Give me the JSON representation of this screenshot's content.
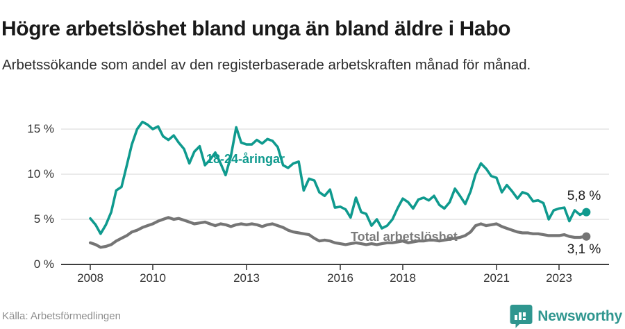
{
  "header": {
    "title": "Högre arbetslöshet bland unga än bland äldre i Habo",
    "subtitle": "Arbetssökande som andel av den registerbaserade arbetskraften månad för månad."
  },
  "footer": {
    "source": "Källa: Arbetsförmedlingen",
    "brand": "Newsworthy",
    "brand_icon": "bar-chart-speech-bubble-icon"
  },
  "colors": {
    "young_line": "#0f9a8e",
    "total_line": "#757575",
    "grid": "#dddddd",
    "axis": "#3d3d3d",
    "brand_teal": "#2f968f"
  },
  "chart_data": {
    "type": "line",
    "title": "Högre arbetslöshet bland unga än bland äldre i Habo",
    "subtitle": "Arbetssökande som andel av den registerbaserade arbetskraften månad för månad.",
    "grid": "horizontal-only",
    "legend_position": "inline-labels",
    "x_axis": {
      "tick_labels": [
        "2008",
        "2010",
        "2013",
        "2016",
        "2018",
        "2021",
        "2023"
      ],
      "tick_years": [
        2008,
        2010,
        2013,
        2016,
        2018,
        2021,
        2023
      ],
      "range": [
        2008.0,
        2023.83
      ]
    },
    "y_axis": {
      "tick_labels": [
        "15 %",
        "10 %",
        "5 %",
        "0 %"
      ],
      "tick_values": [
        15,
        10,
        5,
        0
      ],
      "range": [
        0,
        17
      ]
    },
    "x": [
      2008.0,
      2008.17,
      2008.33,
      2008.5,
      2008.67,
      2008.83,
      2009.0,
      2009.17,
      2009.33,
      2009.5,
      2009.67,
      2009.83,
      2010.0,
      2010.17,
      2010.33,
      2010.5,
      2010.67,
      2010.83,
      2011.0,
      2011.17,
      2011.33,
      2011.5,
      2011.67,
      2011.83,
      2012.0,
      2012.17,
      2012.33,
      2012.5,
      2012.67,
      2012.83,
      2013.0,
      2013.17,
      2013.33,
      2013.5,
      2013.67,
      2013.83,
      2014.0,
      2014.17,
      2014.33,
      2014.5,
      2014.67,
      2014.83,
      2015.0,
      2015.17,
      2015.33,
      2015.5,
      2015.67,
      2015.83,
      2016.0,
      2016.17,
      2016.33,
      2016.5,
      2016.67,
      2016.83,
      2017.0,
      2017.17,
      2017.33,
      2017.5,
      2017.67,
      2017.83,
      2018.0,
      2018.17,
      2018.33,
      2018.5,
      2018.67,
      2018.83,
      2019.0,
      2019.17,
      2019.33,
      2019.5,
      2019.67,
      2019.83,
      2020.0,
      2020.17,
      2020.33,
      2020.5,
      2020.67,
      2020.83,
      2021.0,
      2021.17,
      2021.33,
      2021.5,
      2021.67,
      2021.83,
      2022.0,
      2022.17,
      2022.33,
      2022.5,
      2022.67,
      2022.83,
      2023.0,
      2023.17,
      2023.33,
      2023.5,
      2023.67,
      2023.83
    ],
    "series": [
      {
        "name": "18-24-åringar",
        "color": "#0f9a8e",
        "end_label": "5,8 %",
        "end_value": 5.8,
        "values": [
          5.1,
          4.4,
          3.4,
          4.4,
          5.8,
          8.2,
          8.6,
          11.0,
          13.3,
          15.0,
          15.8,
          15.5,
          15.0,
          15.3,
          14.2,
          13.8,
          14.3,
          13.5,
          12.8,
          11.2,
          12.5,
          13.1,
          11.0,
          11.6,
          12.4,
          11.2,
          9.9,
          12.0,
          15.2,
          13.5,
          13.3,
          13.3,
          13.8,
          13.4,
          13.9,
          13.7,
          13.0,
          11.0,
          10.7,
          11.2,
          11.4,
          8.2,
          9.5,
          9.3,
          8.0,
          7.6,
          8.3,
          6.3,
          6.4,
          6.1,
          5.2,
          7.4,
          5.8,
          5.6,
          4.3,
          5.0,
          4.0,
          4.3,
          5.0,
          6.2,
          7.3,
          6.9,
          6.2,
          7.2,
          7.4,
          7.1,
          7.6,
          6.6,
          6.2,
          6.9,
          8.4,
          7.6,
          6.7,
          8.1,
          10.0,
          11.2,
          10.6,
          9.8,
          9.6,
          8.0,
          8.8,
          8.1,
          7.3,
          8.0,
          7.8,
          7.0,
          7.1,
          6.8,
          5.0,
          6.0,
          6.2,
          6.3,
          4.8,
          6.0,
          5.5,
          5.8
        ]
      },
      {
        "name": "Total arbetslöshet",
        "color": "#757575",
        "end_label": "3,1 %",
        "end_value": 3.1,
        "values": [
          2.4,
          2.2,
          1.9,
          2.0,
          2.2,
          2.6,
          2.9,
          3.2,
          3.6,
          3.8,
          4.1,
          4.3,
          4.5,
          4.8,
          5.0,
          5.2,
          5.0,
          5.1,
          4.9,
          4.7,
          4.5,
          4.6,
          4.7,
          4.5,
          4.3,
          4.5,
          4.4,
          4.2,
          4.4,
          4.5,
          4.4,
          4.5,
          4.4,
          4.2,
          4.4,
          4.5,
          4.3,
          4.1,
          3.8,
          3.6,
          3.5,
          3.4,
          3.3,
          2.9,
          2.6,
          2.7,
          2.6,
          2.4,
          2.3,
          2.2,
          2.3,
          2.4,
          2.3,
          2.2,
          2.3,
          2.2,
          2.3,
          2.4,
          2.4,
          2.5,
          2.6,
          2.4,
          2.5,
          2.6,
          2.6,
          2.7,
          2.7,
          2.6,
          2.7,
          2.8,
          2.9,
          3.0,
          3.2,
          3.6,
          4.3,
          4.5,
          4.3,
          4.4,
          4.5,
          4.2,
          4.0,
          3.8,
          3.6,
          3.5,
          3.5,
          3.4,
          3.4,
          3.3,
          3.2,
          3.2,
          3.2,
          3.3,
          3.1,
          3.0,
          3.0,
          3.1
        ]
      }
    ]
  }
}
